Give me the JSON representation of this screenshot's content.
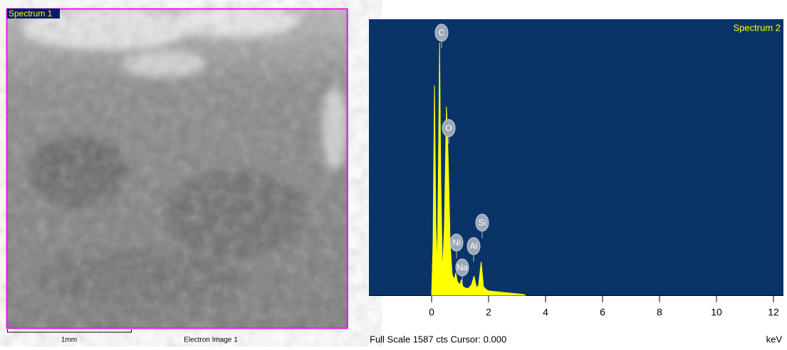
{
  "image_panel": {
    "label": "Spectrum 1",
    "scale_bar": "1mm",
    "caption": "Electron Image 1"
  },
  "chart_data": {
    "type": "area",
    "title": "Spectrum 2",
    "x": [
      0.0,
      0.05,
      0.1,
      0.15,
      0.2,
      0.25,
      0.28,
      0.32,
      0.38,
      0.45,
      0.52,
      0.58,
      0.65,
      0.72,
      0.8,
      0.85,
      0.9,
      0.95,
      1.0,
      1.04,
      1.1,
      1.2,
      1.3,
      1.4,
      1.49,
      1.58,
      1.65,
      1.74,
      1.82,
      1.9,
      2.0,
      2.3,
      2.6,
      3.0,
      3.2,
      3.3
    ],
    "values": [
      0,
      300,
      1207,
      400,
      150,
      900,
      1452,
      700,
      120,
      400,
      1084,
      800,
      300,
      120,
      90,
      130,
      80,
      70,
      60,
      90,
      50,
      40,
      40,
      60,
      110,
      40,
      60,
      192,
      50,
      35,
      25,
      20,
      15,
      8,
      5,
      0
    ],
    "color": "#ffff00",
    "xlim": [
      -2.2,
      12.35
    ],
    "xticks": [
      0,
      2,
      4,
      6,
      8,
      10,
      12
    ],
    "ylim": [
      0,
      1587
    ],
    "peak_labels": [
      "C",
      "O",
      "Ni",
      "Na",
      "Al",
      "Si"
    ],
    "footer": "Full Scale 1587 cts Cursor: 0.000",
    "x_unit": "keV"
  }
}
